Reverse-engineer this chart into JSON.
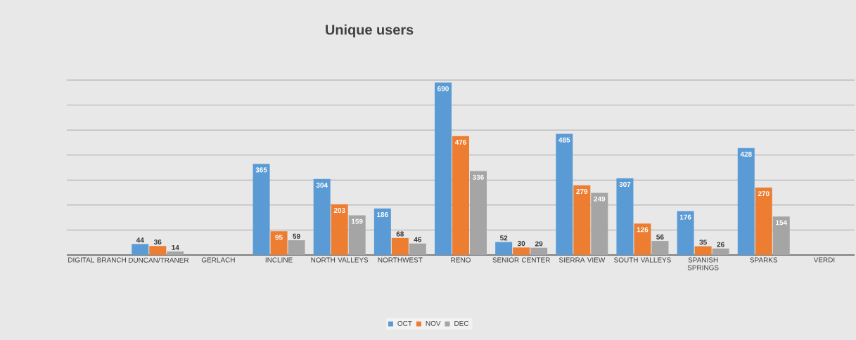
{
  "chart_data": {
    "type": "bar",
    "title": "Unique users",
    "categories": [
      "DIGITAL BRANCH",
      "DUNCAN/TRANER",
      "GERLACH",
      "INCLINE",
      "NORTH VALLEYS",
      "NORTHWEST",
      "RENO",
      "SENIOR CENTER",
      "SIERRA VIEW",
      "SOUTH VALLEYS",
      "SPANISH SPRINGS",
      "SPARKS",
      "VERDI"
    ],
    "series": [
      {
        "name": "OCT",
        "color": "#5b9bd5",
        "values": [
          null,
          44,
          null,
          365,
          304,
          186,
          690,
          52,
          485,
          307,
          176,
          428,
          null
        ]
      },
      {
        "name": "NOV",
        "color": "#ed7d31",
        "values": [
          null,
          36,
          null,
          95,
          203,
          68,
          476,
          30,
          279,
          126,
          35,
          270,
          null
        ]
      },
      {
        "name": "DEC",
        "color": "#a5a5a5",
        "values": [
          null,
          14,
          null,
          59,
          159,
          46,
          336,
          29,
          249,
          56,
          26,
          154,
          null
        ]
      }
    ],
    "data_labels": true,
    "ylim": [
      0,
      700
    ],
    "yticks": [
      {
        "value": 0,
        "label": null
      },
      {
        "value": 100,
        "label": null
      },
      {
        "value": 200,
        "label": null
      },
      {
        "value": 300,
        "label": null
      },
      {
        "value": 400,
        "label": null
      },
      {
        "value": 500,
        "label": null
      },
      {
        "value": 600,
        "label": null
      },
      {
        "value": 700,
        "label": null
      }
    ],
    "grid": "y",
    "legend": "bottom"
  }
}
